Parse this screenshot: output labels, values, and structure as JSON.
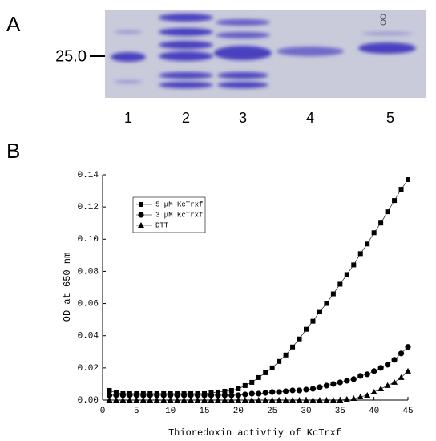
{
  "panel_a": {
    "label": "A",
    "marker": "25.0",
    "lanes": [
      "1",
      "2",
      "3",
      "4",
      "5"
    ]
  },
  "chart_data": {
    "type": "scatter",
    "label": "B",
    "xlabel": "Thioredoxin activtiy of KcTrxf",
    "ylabel": "OD at 650 nm",
    "x": [
      1,
      2,
      3,
      4,
      5,
      6,
      7,
      8,
      9,
      10,
      11,
      12,
      13,
      14,
      15,
      16,
      17,
      18,
      19,
      20,
      21,
      22,
      23,
      24,
      25,
      26,
      27,
      28,
      29,
      30,
      31,
      32,
      33,
      34,
      35,
      36,
      37,
      38,
      39,
      40,
      41,
      42,
      43,
      44,
      45
    ],
    "series": [
      {
        "name": "5 μM KcTrxf",
        "color": "#000000",
        "marker": "square",
        "values": [
          0.006,
          0.0045,
          0.004,
          0.004,
          0.004,
          0.004,
          0.004,
          0.004,
          0.004,
          0.004,
          0.004,
          0.004,
          0.004,
          0.004,
          0.004,
          0.0045,
          0.005,
          0.0055,
          0.006,
          0.007,
          0.009,
          0.011,
          0.014,
          0.017,
          0.02,
          0.024,
          0.028,
          0.033,
          0.038,
          0.044,
          0.049,
          0.055,
          0.06,
          0.066,
          0.072,
          0.078,
          0.084,
          0.091,
          0.097,
          0.104,
          0.11,
          0.117,
          0.124,
          0.131,
          0.137
        ]
      },
      {
        "name": "3 μM KcTrxf",
        "color": "#000000",
        "marker": "circle",
        "values": [
          0.003,
          0.003,
          0.003,
          0.003,
          0.003,
          0.003,
          0.003,
          0.003,
          0.003,
          0.003,
          0.003,
          0.003,
          0.003,
          0.003,
          0.003,
          0.003,
          0.003,
          0.003,
          0.003,
          0.003,
          0.0035,
          0.004,
          0.004,
          0.0045,
          0.005,
          0.005,
          0.0055,
          0.006,
          0.006,
          0.0065,
          0.007,
          0.008,
          0.009,
          0.01,
          0.011,
          0.012,
          0.013,
          0.015,
          0.016,
          0.018,
          0.02,
          0.022,
          0.025,
          0.029,
          0.033
        ]
      },
      {
        "name": "DTT",
        "color": "#000000",
        "marker": "triangle",
        "values": [
          0,
          0,
          0,
          0,
          0,
          0,
          0,
          0,
          0,
          0,
          0,
          0,
          0,
          0,
          0,
          0,
          0,
          0,
          0,
          0,
          0,
          0,
          0,
          0,
          0,
          0,
          0,
          0,
          0,
          0,
          0,
          0,
          0,
          0,
          0,
          0.0005,
          0.001,
          0.002,
          0.003,
          0.005,
          0.007,
          0.009,
          0.011,
          0.014,
          0.018
        ]
      }
    ],
    "xlim": [
      0,
      45
    ],
    "xticks": [
      0,
      5,
      10,
      15,
      20,
      25,
      30,
      35,
      40,
      45
    ],
    "ylim": [
      0,
      0.14
    ],
    "yticks": [
      {
        "value": 0,
        "label": "0.00"
      },
      {
        "value": 0.02,
        "label": "0.02"
      },
      {
        "value": 0.04,
        "label": "0.04"
      },
      {
        "value": 0.06,
        "label": "0.06"
      },
      {
        "value": 0.08,
        "label": "0.08"
      },
      {
        "value": 0.1,
        "label": "0.10"
      },
      {
        "value": 0.12,
        "label": "0.12"
      },
      {
        "value": 0.14,
        "label": "0.14"
      }
    ],
    "legend": "upper left"
  }
}
